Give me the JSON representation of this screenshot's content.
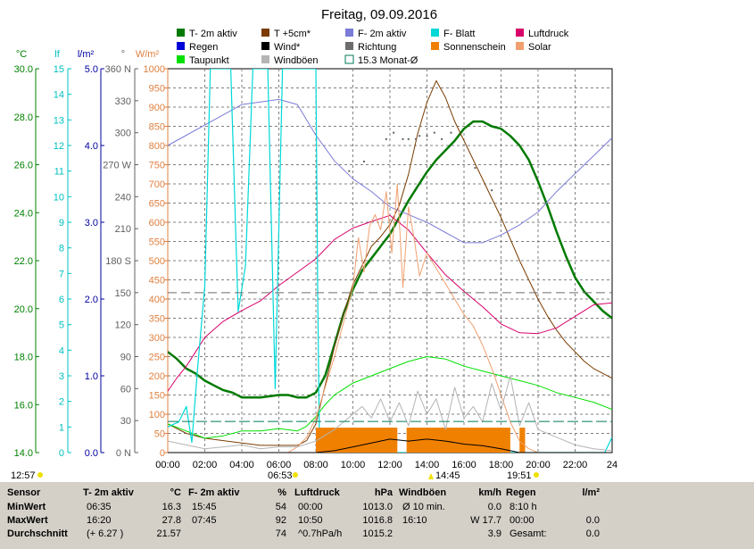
{
  "title": "Freitag, 09.09.2016",
  "colors": {
    "t2m": "#007a00",
    "t5cm": "#7a3c00",
    "f2m": "#7b7bd8",
    "fblatt": "#00d8d8",
    "luftdruck": "#d8006a",
    "regen": "#0000d8",
    "wind": "#000000",
    "richtung": "#6c6c6c",
    "sonnenschein": "#f08000",
    "solar": "#f0a070",
    "taupunkt": "#00e000",
    "windboeen": "#b4b4b4",
    "monat": "#007a5a",
    "axis_temp": "#008000",
    "axis_lf": "#00c0c0",
    "axis_rain": "#0000a0",
    "axis_dir": "#606060",
    "axis_solar": "#e08040",
    "grid": "#808080",
    "stats_bg": "#d4d0c8"
  },
  "legend": [
    {
      "label": "T- 2m aktiv",
      "color": "#007a00",
      "style": "fill"
    },
    {
      "label": "T +5cm*",
      "color": "#7a3c00",
      "style": "fill"
    },
    {
      "label": "F- 2m aktiv",
      "color": "#7b7bd8",
      "style": "fill"
    },
    {
      "label": "F- Blatt",
      "color": "#00d8d8",
      "style": "fill"
    },
    {
      "label": "Luftdruck",
      "color": "#d8006a",
      "style": "fill"
    },
    {
      "label": "Regen",
      "color": "#0000d8",
      "style": "fill"
    },
    {
      "label": "Wind*",
      "color": "#000000",
      "style": "fill"
    },
    {
      "label": "Richtung",
      "color": "#6c6c6c",
      "style": "fill"
    },
    {
      "label": "Sonnenschein",
      "color": "#f08000",
      "style": "fill"
    },
    {
      "label": "Solar",
      "color": "#f0a070",
      "style": "fill"
    },
    {
      "label": "Taupunkt",
      "color": "#00e000",
      "style": "fill"
    },
    {
      "label": "Windböen",
      "color": "#b4b4b4",
      "style": "fill"
    },
    {
      "label": "15.3 Monat-Ø",
      "color": "#007a5a",
      "style": "outline"
    }
  ],
  "axes": {
    "temp": {
      "unit": "°C",
      "ticks": [
        "30.0",
        "28.0",
        "26.0",
        "24.0",
        "22.0",
        "20.0",
        "18.0",
        "16.0",
        "14.0"
      ]
    },
    "lf": {
      "unit": "lf",
      "ticks": [
        "15",
        "14",
        "13",
        "12",
        "11",
        "10",
        "9",
        "8",
        "7",
        "6",
        "5",
        "4",
        "3",
        "2",
        "1",
        "0"
      ]
    },
    "rain": {
      "unit": "l/m²",
      "ticks": [
        "5.0",
        "4.0",
        "3.0",
        "2.0",
        "1.0",
        "0.0"
      ]
    },
    "dir": {
      "unit": "°",
      "ticks": [
        "360 N",
        "330",
        "300",
        "270 W",
        "240",
        "210",
        "180 S",
        "150",
        "120",
        "90",
        "60",
        "30",
        "0 N"
      ]
    },
    "solar": {
      "unit": "W/m²",
      "ticks": [
        "1000",
        "950",
        "900",
        "850",
        "800",
        "750",
        "700",
        "650",
        "600",
        "550",
        "500",
        "450",
        "400",
        "350",
        "300",
        "250",
        "200",
        "150",
        "100",
        "50",
        "0"
      ]
    },
    "x_ticks": [
      "00:00",
      "02:00",
      "04:00",
      "06:00",
      "08:00",
      "10:00",
      "12:00",
      "14:00",
      "16:00",
      "18:00",
      "20:00",
      "22:00",
      "24"
    ]
  },
  "markers": {
    "sunrise": "06:53",
    "solar_noon": "14:45",
    "sunset": "19:51",
    "left_time": "12:57"
  },
  "chart_data": {
    "type": "line",
    "title": "Freitag, 09.09.2016",
    "x_unit": "hours",
    "xlim": [
      0,
      24
    ],
    "temp_ylim": [
      14,
      30
    ],
    "solar_ylim": [
      0,
      1000
    ],
    "series": [
      {
        "name": "T- 2m aktiv",
        "axis": "temp",
        "color": "#007a00",
        "width": 2.5,
        "x": [
          0,
          0.5,
          1,
          1.5,
          2,
          2.5,
          3,
          3.5,
          4,
          5,
          6,
          6.5,
          7,
          7.5,
          8,
          8.5,
          9,
          9.5,
          10,
          10.5,
          11,
          11.5,
          12,
          12.5,
          13,
          13.5,
          14,
          14.5,
          15,
          15.5,
          16,
          16.5,
          17,
          17.5,
          18,
          18.5,
          19,
          19.5,
          20,
          20.5,
          21,
          21.5,
          22,
          22.5,
          23,
          23.5,
          24
        ],
        "y": [
          18.2,
          17.9,
          17.5,
          17.3,
          17.0,
          16.8,
          16.6,
          16.5,
          16.3,
          16.3,
          16.4,
          16.4,
          16.3,
          16.3,
          16.5,
          17.2,
          18.5,
          19.8,
          20.8,
          21.6,
          22.1,
          22.6,
          23.1,
          23.8,
          24.5,
          25.1,
          25.7,
          26.2,
          26.6,
          27.0,
          27.5,
          27.8,
          27.8,
          27.6,
          27.5,
          27.2,
          26.8,
          26.2,
          25.3,
          24.3,
          23.2,
          22.2,
          21.3,
          20.7,
          20.3,
          19.9,
          19.6
        ]
      },
      {
        "name": "T +5cm*",
        "axis": "temp",
        "color": "#7a3c00",
        "width": 1,
        "x": [
          0,
          1,
          2,
          3,
          4,
          5,
          6,
          6.5,
          7,
          7.5,
          8,
          8.5,
          9,
          9.5,
          10,
          10.5,
          11,
          11.5,
          12,
          12.5,
          13,
          13.5,
          14,
          14.5,
          15,
          15.5,
          16,
          16.5,
          17,
          17.5,
          18,
          18.5,
          19,
          19.5,
          20,
          20.5,
          21,
          21.5,
          22,
          22.5,
          23,
          23.5,
          24
        ],
        "y": [
          15.2,
          14.8,
          14.6,
          14.5,
          14.4,
          14.3,
          14.3,
          14.3,
          14.3,
          14.5,
          15.2,
          16.8,
          18.4,
          19.8,
          21.0,
          21.8,
          22.6,
          23.0,
          23.5,
          24.3,
          25.6,
          27.3,
          28.6,
          29.5,
          28.8,
          27.8,
          27.0,
          26.2,
          25.4,
          24.6,
          23.8,
          22.9,
          22.0,
          21.2,
          20.4,
          19.7,
          19.1,
          18.6,
          18.2,
          17.8,
          17.5,
          17.3,
          17.1
        ]
      },
      {
        "name": "Taupunkt",
        "axis": "temp",
        "color": "#00e000",
        "width": 1,
        "x": [
          0,
          1,
          2,
          3,
          4,
          5,
          6,
          7,
          7.5,
          8,
          8.5,
          9,
          10,
          11,
          12,
          13,
          14,
          15,
          16,
          17,
          18,
          19,
          20,
          21,
          22,
          23,
          24
        ],
        "y": [
          15.2,
          14.9,
          14.6,
          14.7,
          14.9,
          14.9,
          15.0,
          14.9,
          15.1,
          15.5,
          16.0,
          16.4,
          16.9,
          17.2,
          17.5,
          17.8,
          18.0,
          17.9,
          17.6,
          17.4,
          17.2,
          17.0,
          16.8,
          16.5,
          16.3,
          16.1,
          15.8
        ]
      },
      {
        "name": "F- 2m aktiv",
        "axis": "lf",
        "color": "#7b7bd8",
        "width": 1,
        "x": [
          0,
          1,
          2,
          3,
          4,
          5,
          6,
          7,
          8,
          9,
          10,
          11,
          12,
          13,
          14,
          15,
          16,
          17,
          18,
          19,
          20,
          21,
          22,
          23,
          24
        ],
        "y": [
          12.0,
          12.4,
          12.8,
          13.2,
          13.6,
          13.7,
          13.8,
          13.6,
          12.4,
          11.4,
          10.7,
          10.2,
          9.6,
          9.3,
          9.0,
          8.6,
          8.2,
          8.2,
          8.5,
          8.9,
          9.4,
          10.2,
          10.9,
          11.6,
          12.3
        ]
      },
      {
        "name": "Luftdruck",
        "axis": "solar",
        "color": "#d8006a",
        "width": 1,
        "x": [
          0,
          0.5,
          1,
          1.5,
          2,
          3,
          4,
          5,
          6,
          7,
          8,
          9,
          10,
          11,
          12,
          13,
          14,
          15,
          16,
          17,
          18,
          19,
          20,
          21,
          22,
          23,
          24
        ],
        "y": [
          160,
          195,
          225,
          262,
          300,
          342,
          370,
          395,
          435,
          470,
          505,
          555,
          585,
          602,
          618,
          580,
          520,
          463,
          420,
          380,
          335,
          312,
          310,
          325,
          355,
          385,
          390
        ]
      },
      {
        "name": "F- Blatt",
        "axis": "lf",
        "color": "#00d8d8",
        "width": 1.2,
        "x": [
          0,
          0.6,
          1.0,
          1.3,
          1.6,
          2.0,
          2.3,
          2.6,
          3.0,
          3.4,
          3.8,
          4.2,
          4.6,
          5.0,
          5.4,
          5.8,
          6.2,
          6.6,
          7.0,
          7.4,
          7.8,
          8.0,
          8.1,
          8.2,
          9,
          10,
          12,
          14,
          16,
          18,
          20,
          22,
          23,
          23.4,
          23.6,
          24
        ],
        "y": [
          1.0,
          1.2,
          1.8,
          0.4,
          3.2,
          6.5,
          15.0,
          15.0,
          15.0,
          15.0,
          5.5,
          7.3,
          15.0,
          15.0,
          15.0,
          2.5,
          15.0,
          15.0,
          15.0,
          15.0,
          15.0,
          15.0,
          6.0,
          0.0,
          0.0,
          0.0,
          0.0,
          0.0,
          0.0,
          0.0,
          0.0,
          0.0,
          0.0,
          0.0,
          0.0,
          0.6
        ]
      },
      {
        "name": "Sonnenschein",
        "axis": "solar",
        "color": "#f08000",
        "type": "band",
        "segments": [
          [
            8.0,
            12.4,
            65
          ],
          [
            12.9,
            18.5,
            65
          ],
          [
            19.0,
            19.3,
            65
          ]
        ]
      },
      {
        "name": "Solar",
        "axis": "solar",
        "color": "#f0a070",
        "width": 1,
        "x": [
          0,
          6.5,
          7,
          7.5,
          8,
          8.5,
          9,
          9.5,
          10,
          10.3,
          10.6,
          10.9,
          11.2,
          11.5,
          11.8,
          12.1,
          12.4,
          12.7,
          13,
          13.3,
          13.6,
          14,
          14.5,
          15,
          15.5,
          16,
          16.5,
          17,
          17.5,
          18,
          18.5,
          19,
          19.5,
          20,
          24
        ],
        "y": [
          0,
          0,
          15,
          40,
          90,
          170,
          250,
          340,
          430,
          560,
          470,
          590,
          620,
          580,
          680,
          520,
          700,
          430,
          640,
          560,
          460,
          520,
          480,
          440,
          400,
          360,
          330,
          280,
          220,
          150,
          80,
          30,
          10,
          0,
          0
        ]
      },
      {
        "name": "Windböen",
        "axis": "solar",
        "color": "#b4b4b4",
        "width": 1,
        "x": [
          0,
          1,
          2,
          3,
          4,
          5,
          6,
          7,
          8,
          9,
          10,
          10.5,
          11,
          11.5,
          12,
          12.5,
          13,
          13.5,
          14,
          14.5,
          15,
          15.5,
          16,
          16.5,
          17,
          17.5,
          18,
          18.5,
          19,
          19.5,
          20,
          21,
          22,
          23,
          24
        ],
        "y": [
          30,
          20,
          10,
          15,
          20,
          10,
          15,
          15,
          30,
          60,
          100,
          120,
          90,
          140,
          80,
          130,
          70,
          160,
          100,
          140,
          60,
          170,
          90,
          120,
          80,
          180,
          110,
          200,
          70,
          130,
          60,
          40,
          20,
          10,
          5
        ]
      },
      {
        "name": "Wind*",
        "axis": "solar",
        "color": "#000000",
        "width": 1,
        "x": [
          0,
          8,
          9,
          10,
          11,
          12,
          13,
          14,
          15,
          16,
          17,
          18,
          18.5,
          19,
          24
        ],
        "y": [
          0,
          0,
          5,
          15,
          25,
          35,
          30,
          35,
          30,
          22,
          18,
          10,
          5,
          0,
          0
        ]
      },
      {
        "name": "15.3 Monat-Ø",
        "axis": "temp",
        "color": "#007a5a",
        "type": "hline",
        "value": 15.3
      },
      {
        "name": "Richtung",
        "axis": "dir",
        "color": "#6c6c6c",
        "type": "hline",
        "value": 150
      },
      {
        "name": "Richtung",
        "axis": "dir",
        "color": "#606060",
        "type": "scatter",
        "x": [
          11.8,
          12.2,
          12.7,
          13.0,
          13.4,
          13.6,
          14.0,
          14.4,
          14.8,
          15.3,
          16.6,
          17.5,
          9.8,
          10.6
        ],
        "y": [
          294,
          300,
          294,
          294,
          294,
          297,
          297,
          300,
          294,
          300,
          267,
          246,
          264,
          273
        ]
      }
    ]
  },
  "stats": {
    "headers": [
      {
        "name": "Sensor",
        "unit": ""
      },
      {
        "name": "T- 2m aktiv",
        "unit": "°C"
      },
      {
        "name": "F- 2m aktiv",
        "unit": "%"
      },
      {
        "name": "Luftdruck",
        "unit": "hPa"
      },
      {
        "name": "Windböen",
        "unit": "km/h"
      },
      {
        "name": "Regen",
        "unit": "l/m²"
      }
    ],
    "rows": [
      {
        "label": "MinWert",
        "cells": [
          [
            "06:35",
            "16.3"
          ],
          [
            "15:45",
            "54"
          ],
          [
            "00:00",
            "1013.0"
          ],
          [
            "Ø 10 min.",
            "0.0"
          ],
          [
            "8:10 h",
            ""
          ]
        ]
      },
      {
        "label": "MaxWert",
        "cells": [
          [
            "16:20",
            "27.8"
          ],
          [
            "07:45",
            "92"
          ],
          [
            "10:50",
            "1016.8"
          ],
          [
            "16:10",
            "W 17.7"
          ],
          [
            "00:00",
            "0.0"
          ]
        ]
      },
      {
        "label": "Durchschnitt",
        "cells": [
          [
            "(+ 6.27 )",
            "21.57"
          ],
          [
            "",
            "74"
          ],
          [
            "^0.7hPa/h",
            "1015.2"
          ],
          [
            "",
            "3.9"
          ],
          [
            "Gesamt:",
            "0.0"
          ]
        ]
      }
    ]
  }
}
